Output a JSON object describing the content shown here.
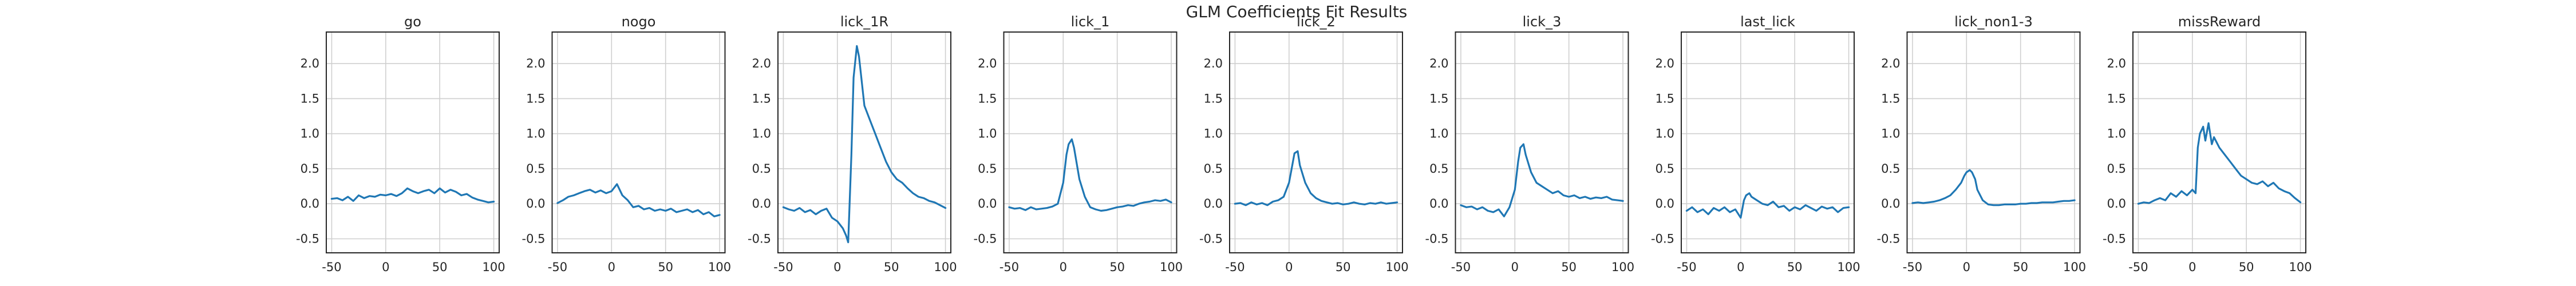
{
  "figure": {
    "suptitle": "GLM Coefficients Fit Results"
  },
  "style": {
    "line_color": "#1f77b4",
    "grid": true
  },
  "chart_data": [
    {
      "type": "line",
      "title": "go",
      "xlim": [
        -55,
        105
      ],
      "ylim": [
        -0.7,
        2.45
      ],
      "xticks": [
        "-50",
        "0",
        "50",
        "100"
      ],
      "yticks": [
        "-0.5",
        "0.0",
        "0.5",
        "1.0",
        "1.5",
        "2.0"
      ],
      "x": [
        -50,
        -45,
        -40,
        -35,
        -30,
        -25,
        -20,
        -15,
        -10,
        -5,
        0,
        5,
        10,
        15,
        20,
        25,
        30,
        35,
        40,
        45,
        50,
        55,
        60,
        65,
        70,
        75,
        80,
        85,
        90,
        95,
        100
      ],
      "y": [
        0.07,
        0.08,
        0.05,
        0.1,
        0.04,
        0.12,
        0.08,
        0.11,
        0.1,
        0.13,
        0.12,
        0.14,
        0.11,
        0.15,
        0.22,
        0.18,
        0.15,
        0.18,
        0.2,
        0.15,
        0.22,
        0.16,
        0.2,
        0.17,
        0.12,
        0.14,
        0.09,
        0.06,
        0.04,
        0.02,
        0.03
      ]
    },
    {
      "type": "line",
      "title": "nogo",
      "xlim": [
        -55,
        105
      ],
      "ylim": [
        -0.7,
        2.45
      ],
      "xticks": [
        "-50",
        "0",
        "50",
        "100"
      ],
      "yticks": [
        "-0.5",
        "0.0",
        "0.5",
        "1.0",
        "1.5",
        "2.0"
      ],
      "x": [
        -50,
        -45,
        -40,
        -35,
        -30,
        -25,
        -20,
        -15,
        -10,
        -5,
        0,
        5,
        10,
        15,
        20,
        25,
        30,
        35,
        40,
        45,
        50,
        55,
        60,
        65,
        70,
        75,
        80,
        85,
        90,
        95,
        100
      ],
      "y": [
        0.01,
        0.05,
        0.1,
        0.12,
        0.15,
        0.18,
        0.2,
        0.16,
        0.19,
        0.15,
        0.18,
        0.28,
        0.12,
        0.05,
        -0.05,
        -0.03,
        -0.08,
        -0.06,
        -0.1,
        -0.08,
        -0.1,
        -0.07,
        -0.12,
        -0.1,
        -0.08,
        -0.12,
        -0.09,
        -0.15,
        -0.12,
        -0.18,
        -0.16
      ]
    },
    {
      "type": "line",
      "title": "lick_1R",
      "xlim": [
        -55,
        105
      ],
      "ylim": [
        -0.7,
        2.45
      ],
      "xticks": [
        "-50",
        "0",
        "50",
        "100"
      ],
      "yticks": [
        "-0.5",
        "0.0",
        "0.5",
        "1.0",
        "1.5",
        "2.0"
      ],
      "x": [
        -50,
        -45,
        -40,
        -35,
        -30,
        -25,
        -20,
        -15,
        -10,
        -5,
        0,
        5,
        8,
        10,
        13,
        15,
        18,
        20,
        25,
        30,
        35,
        40,
        45,
        50,
        55,
        60,
        65,
        70,
        75,
        80,
        85,
        90,
        95,
        100
      ],
      "y": [
        -0.05,
        -0.08,
        -0.1,
        -0.06,
        -0.12,
        -0.09,
        -0.15,
        -0.1,
        -0.07,
        -0.2,
        -0.25,
        -0.35,
        -0.45,
        -0.55,
        0.7,
        1.8,
        2.25,
        2.1,
        1.4,
        1.2,
        1.0,
        0.8,
        0.6,
        0.45,
        0.35,
        0.3,
        0.22,
        0.15,
        0.1,
        0.08,
        0.04,
        0.02,
        -0.02,
        -0.06
      ]
    },
    {
      "type": "line",
      "title": "lick_1",
      "xlim": [
        -55,
        105
      ],
      "ylim": [
        -0.7,
        2.45
      ],
      "xticks": [
        "-50",
        "0",
        "50",
        "100"
      ],
      "yticks": [
        "-0.5",
        "0.0",
        "0.5",
        "1.0",
        "1.5",
        "2.0"
      ],
      "x": [
        -50,
        -45,
        -40,
        -35,
        -30,
        -25,
        -20,
        -15,
        -10,
        -5,
        0,
        3,
        5,
        8,
        10,
        15,
        20,
        25,
        30,
        35,
        40,
        45,
        50,
        55,
        60,
        65,
        70,
        75,
        80,
        85,
        90,
        95,
        100
      ],
      "y": [
        -0.05,
        -0.07,
        -0.06,
        -0.09,
        -0.05,
        -0.08,
        -0.07,
        -0.06,
        -0.04,
        0.0,
        0.3,
        0.7,
        0.85,
        0.92,
        0.8,
        0.35,
        0.1,
        -0.05,
        -0.08,
        -0.1,
        -0.09,
        -0.07,
        -0.05,
        -0.04,
        -0.02,
        -0.03,
        0.0,
        0.02,
        0.03,
        0.05,
        0.04,
        0.06,
        0.02
      ]
    },
    {
      "type": "line",
      "title": "lick_2",
      "xlim": [
        -55,
        105
      ],
      "ylim": [
        -0.7,
        2.45
      ],
      "xticks": [
        "-50",
        "0",
        "50",
        "100"
      ],
      "yticks": [
        "-0.5",
        "0.0",
        "0.5",
        "1.0",
        "1.5",
        "2.0"
      ],
      "x": [
        -50,
        -45,
        -40,
        -35,
        -30,
        -25,
        -20,
        -15,
        -10,
        -5,
        0,
        3,
        5,
        8,
        10,
        15,
        20,
        25,
        30,
        35,
        40,
        45,
        50,
        55,
        60,
        65,
        70,
        75,
        80,
        85,
        90,
        95,
        100
      ],
      "y": [
        0.0,
        0.01,
        -0.02,
        0.02,
        -0.01,
        0.01,
        -0.02,
        0.03,
        0.05,
        0.1,
        0.3,
        0.55,
        0.72,
        0.75,
        0.55,
        0.3,
        0.15,
        0.08,
        0.04,
        0.02,
        0.0,
        0.01,
        -0.01,
        0.0,
        0.02,
        0.0,
        -0.01,
        0.01,
        0.0,
        0.02,
        0.0,
        0.01,
        0.02
      ]
    },
    {
      "type": "line",
      "title": "lick_3",
      "xlim": [
        -55,
        105
      ],
      "ylim": [
        -0.7,
        2.45
      ],
      "xticks": [
        "-50",
        "0",
        "50",
        "100"
      ],
      "yticks": [
        "-0.5",
        "0.0",
        "0.5",
        "1.0",
        "1.5",
        "2.0"
      ],
      "x": [
        -50,
        -45,
        -40,
        -35,
        -30,
        -25,
        -20,
        -15,
        -10,
        -5,
        0,
        3,
        5,
        8,
        10,
        15,
        20,
        25,
        30,
        35,
        40,
        45,
        50,
        55,
        60,
        65,
        70,
        75,
        80,
        85,
        90,
        95,
        100
      ],
      "y": [
        -0.02,
        -0.05,
        -0.04,
        -0.08,
        -0.05,
        -0.1,
        -0.12,
        -0.08,
        -0.18,
        -0.05,
        0.2,
        0.6,
        0.8,
        0.85,
        0.7,
        0.45,
        0.3,
        0.25,
        0.2,
        0.15,
        0.18,
        0.12,
        0.1,
        0.12,
        0.08,
        0.1,
        0.07,
        0.09,
        0.08,
        0.1,
        0.06,
        0.05,
        0.04
      ]
    },
    {
      "type": "line",
      "title": "last_lick",
      "xlim": [
        -55,
        105
      ],
      "ylim": [
        -0.7,
        2.45
      ],
      "xticks": [
        "-50",
        "0",
        "50",
        "100"
      ],
      "yticks": [
        "-0.5",
        "0.0",
        "0.5",
        "1.0",
        "1.5",
        "2.0"
      ],
      "x": [
        -50,
        -45,
        -40,
        -35,
        -30,
        -25,
        -20,
        -15,
        -10,
        -5,
        0,
        3,
        5,
        8,
        10,
        15,
        20,
        25,
        30,
        35,
        40,
        45,
        50,
        55,
        60,
        65,
        70,
        75,
        80,
        85,
        90,
        95,
        100
      ],
      "y": [
        -0.1,
        -0.05,
        -0.12,
        -0.08,
        -0.15,
        -0.06,
        -0.1,
        -0.05,
        -0.12,
        -0.08,
        -0.2,
        0.05,
        0.12,
        0.15,
        0.1,
        0.05,
        0.0,
        -0.02,
        0.03,
        -0.05,
        -0.03,
        -0.1,
        -0.05,
        -0.08,
        -0.02,
        -0.06,
        -0.1,
        -0.04,
        -0.07,
        -0.05,
        -0.12,
        -0.06,
        -0.05
      ]
    },
    {
      "type": "line",
      "title": "lick_non1-3",
      "xlim": [
        -55,
        105
      ],
      "ylim": [
        -0.7,
        2.45
      ],
      "xticks": [
        "-50",
        "0",
        "50",
        "100"
      ],
      "yticks": [
        "-0.5",
        "0.0",
        "0.5",
        "1.0",
        "1.5",
        "2.0"
      ],
      "x": [
        -50,
        -45,
        -40,
        -35,
        -30,
        -25,
        -20,
        -15,
        -10,
        -5,
        -2,
        0,
        3,
        5,
        8,
        10,
        15,
        20,
        25,
        30,
        35,
        40,
        45,
        50,
        55,
        60,
        65,
        70,
        75,
        80,
        85,
        90,
        95,
        100
      ],
      "y": [
        0.01,
        0.02,
        0.01,
        0.02,
        0.03,
        0.05,
        0.08,
        0.12,
        0.2,
        0.3,
        0.4,
        0.45,
        0.48,
        0.45,
        0.35,
        0.2,
        0.05,
        -0.01,
        -0.02,
        -0.02,
        -0.01,
        -0.01,
        -0.01,
        0.0,
        0.0,
        0.01,
        0.01,
        0.02,
        0.02,
        0.02,
        0.03,
        0.04,
        0.04,
        0.05
      ]
    },
    {
      "type": "line",
      "title": "missReward",
      "xlim": [
        -55,
        105
      ],
      "ylim": [
        -0.7,
        2.45
      ],
      "xticks": [
        "-50",
        "0",
        "50",
        "100"
      ],
      "yticks": [
        "-0.5",
        "0.0",
        "0.5",
        "1.0",
        "1.5",
        "2.0"
      ],
      "x": [
        -50,
        -45,
        -40,
        -35,
        -30,
        -25,
        -20,
        -15,
        -10,
        -5,
        0,
        3,
        5,
        7,
        10,
        12,
        15,
        18,
        20,
        25,
        30,
        35,
        40,
        45,
        50,
        55,
        60,
        65,
        70,
        75,
        80,
        85,
        90,
        95,
        100
      ],
      "y": [
        0.0,
        0.02,
        0.01,
        0.05,
        0.08,
        0.05,
        0.15,
        0.1,
        0.18,
        0.12,
        0.2,
        0.15,
        0.8,
        1.0,
        1.1,
        0.9,
        1.15,
        0.85,
        0.95,
        0.8,
        0.7,
        0.6,
        0.5,
        0.4,
        0.35,
        0.3,
        0.28,
        0.32,
        0.25,
        0.3,
        0.22,
        0.18,
        0.15,
        0.08,
        0.02
      ]
    }
  ]
}
